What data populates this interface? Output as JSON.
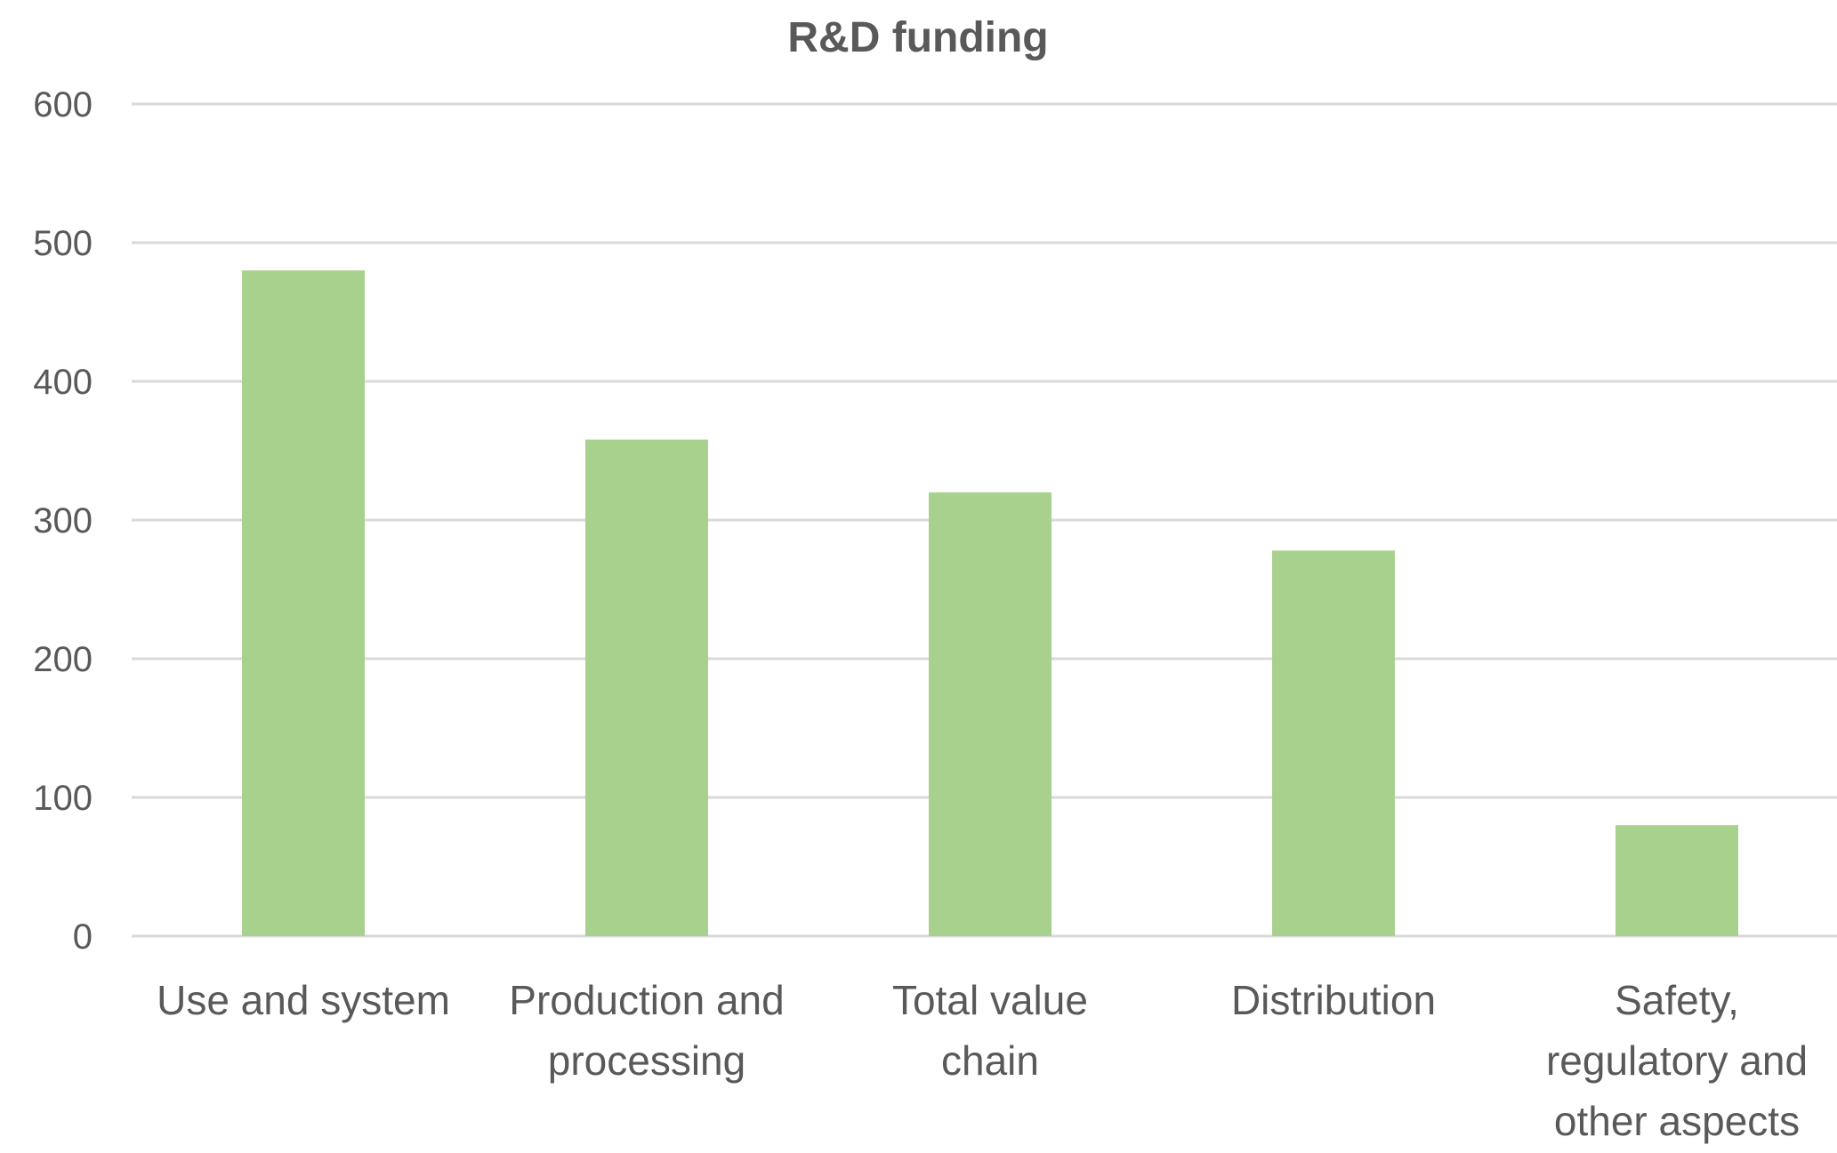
{
  "chart_data": {
    "type": "bar",
    "title": "R&D funding",
    "xlabel": "",
    "ylabel": "",
    "categories": [
      "Use and system",
      "Production and processing",
      "Total value chain",
      "Distribution",
      "Safety, regulatory and other aspects"
    ],
    "category_label_lines": [
      [
        "Use and system"
      ],
      [
        "Production and",
        "processing"
      ],
      [
        "Total value",
        "chain"
      ],
      [
        "Distribution"
      ],
      [
        "Safety,",
        "regulatory and",
        "other aspects"
      ]
    ],
    "values": [
      480,
      358,
      320,
      278,
      80
    ],
    "ylim": [
      0,
      600
    ],
    "yticks": [
      0,
      100,
      200,
      300,
      400,
      500,
      600
    ],
    "grid": true,
    "legend": "none",
    "colors": {
      "bar": "#a9d18e",
      "grid": "#d9d9d9",
      "text": "#595959"
    }
  }
}
